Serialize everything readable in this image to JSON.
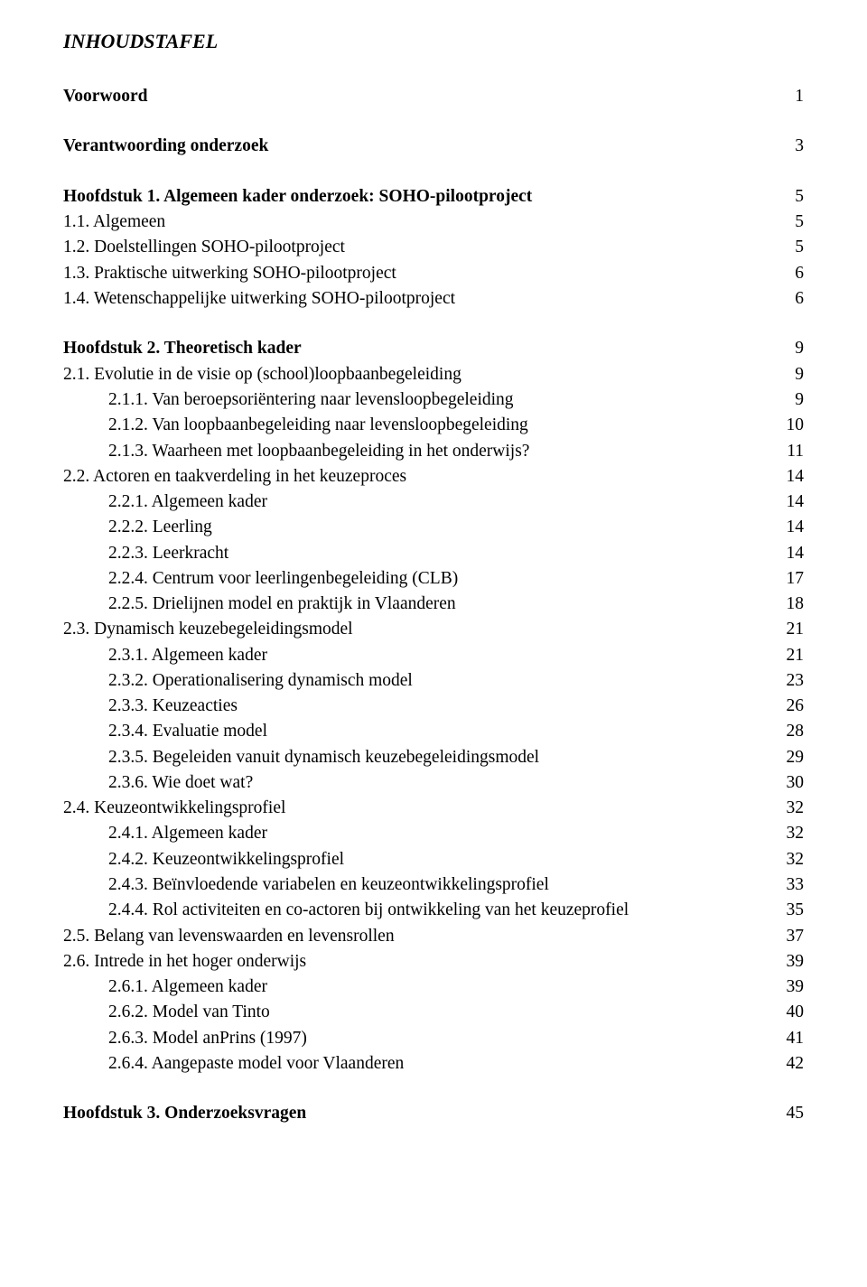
{
  "title": "INHOUDSTAFEL",
  "entries": [
    {
      "label": "Voorwoord",
      "page": "1",
      "bold": true,
      "indent": 0,
      "gap_after": true
    },
    {
      "label": "Verantwoording onderzoek",
      "page": "3",
      "bold": true,
      "indent": 0,
      "gap_after": true
    },
    {
      "label": "Hoofdstuk 1. Algemeen kader onderzoek: SOHO-pilootproject",
      "page": "5",
      "bold": true,
      "indent": 0
    },
    {
      "label": "1.1. Algemeen",
      "page": "5",
      "indent": 0
    },
    {
      "label": "1.2. Doelstellingen SOHO-pilootproject",
      "page": "5",
      "indent": 0
    },
    {
      "label": "1.3. Praktische uitwerking SOHO-pilootproject",
      "page": "6",
      "indent": 0
    },
    {
      "label": "1.4. Wetenschappelijke uitwerking SOHO-pilootproject",
      "page": "6",
      "indent": 0,
      "gap_after": true
    },
    {
      "label": "Hoofdstuk 2. Theoretisch kader",
      "page": "9",
      "bold": true,
      "indent": 0
    },
    {
      "label": "2.1. Evolutie in de visie op (school)loopbaanbegeleiding",
      "page": "9",
      "indent": 0
    },
    {
      "label": "2.1.1. Van beroepsoriëntering naar levensloopbegeleiding",
      "page": "9",
      "indent": 1
    },
    {
      "label": "2.1.2. Van loopbaanbegeleiding naar levensloopbegeleiding",
      "page": "10",
      "indent": 1
    },
    {
      "label": "2.1.3. Waarheen met loopbaanbegeleiding in het onderwijs?",
      "page": "11",
      "indent": 1
    },
    {
      "label": "2.2. Actoren en taakverdeling in het keuzeproces",
      "page": "14",
      "indent": 0
    },
    {
      "label": "2.2.1. Algemeen kader",
      "page": "14",
      "indent": 1
    },
    {
      "label": "2.2.2. Leerling",
      "page": "14",
      "indent": 1
    },
    {
      "label": "2.2.3. Leerkracht",
      "page": "14",
      "indent": 1
    },
    {
      "label": "2.2.4. Centrum voor leerlingenbegeleiding (CLB)",
      "page": "17",
      "indent": 1
    },
    {
      "label": "2.2.5. Drielijnen model en praktijk in Vlaanderen",
      "page": "18",
      "indent": 1
    },
    {
      "label": "2.3. Dynamisch keuzebegeleidingsmodel",
      "page": "21",
      "indent": 0
    },
    {
      "label": "2.3.1. Algemeen kader",
      "page": "21",
      "indent": 1
    },
    {
      "label": "2.3.2. Operationalisering dynamisch model",
      "page": "23",
      "indent": 1
    },
    {
      "label": "2.3.3. Keuzeacties",
      "page": "26",
      "indent": 1
    },
    {
      "label": "2.3.4. Evaluatie model",
      "page": "28",
      "indent": 1
    },
    {
      "label": "2.3.5. Begeleiden vanuit dynamisch keuzebegeleidingsmodel",
      "page": "29",
      "indent": 1
    },
    {
      "label": "2.3.6. Wie doet wat?",
      "page": "30",
      "indent": 1
    },
    {
      "label": "2.4. Keuzeontwikkelingsprofiel",
      "page": "32",
      "indent": 0
    },
    {
      "label": "2.4.1. Algemeen kader",
      "page": "32",
      "indent": 1
    },
    {
      "label": "2.4.2. Keuzeontwikkelingsprofiel",
      "page": "32",
      "indent": 1
    },
    {
      "label": "2.4.3. Beïnvloedende variabelen en keuzeontwikkelingsprofiel",
      "page": "33",
      "indent": 1
    },
    {
      "label": "2.4.4. Rol activiteiten en co-actoren bij ontwikkeling van het keuzeprofiel",
      "page": "35",
      "indent": 1
    },
    {
      "label": "2.5. Belang van levenswaarden en levensrollen",
      "page": "37",
      "indent": 0
    },
    {
      "label": "2.6. Intrede in het hoger onderwijs",
      "page": "39",
      "indent": 0
    },
    {
      "label": "2.6.1. Algemeen kader",
      "page": "39",
      "indent": 1
    },
    {
      "label": "2.6.2. Model van Tinto",
      "page": "40",
      "indent": 1
    },
    {
      "label": "2.6.3. Model anPrins (1997)",
      "page": "41",
      "indent": 1
    },
    {
      "label": "2.6.4. Aangepaste model voor Vlaanderen",
      "page": "42",
      "indent": 1,
      "gap_after": true
    },
    {
      "label": "Hoofdstuk 3. Onderzoeksvragen",
      "page": "45",
      "bold": true,
      "indent": 0
    }
  ]
}
